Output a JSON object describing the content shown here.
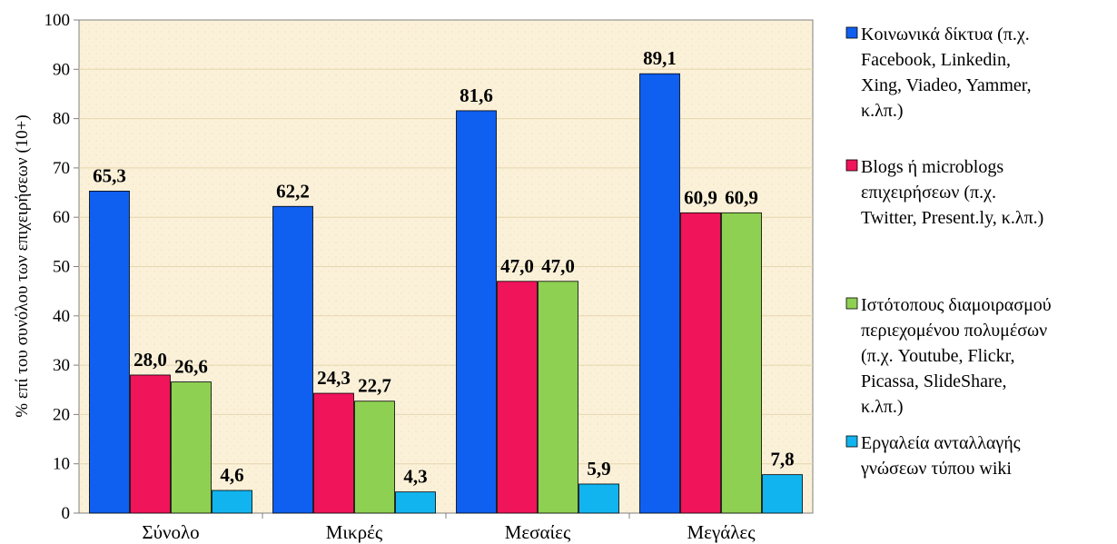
{
  "chart_data": {
    "type": "bar",
    "categories": [
      "Σύνολο",
      "Μικρές",
      "Μεσαίες",
      "Μεγάλες"
    ],
    "series": [
      {
        "name": "Κοινωνικά δίκτυα (π.χ. Facebook, Linkedin, Xing, Viadeo, Yammer, κ.λπ.)",
        "legend_lines": [
          "Κοινωνικά δίκτυα (π.χ.",
          "Facebook, Linkedin,",
          "Xing, Viadeo, Yammer,",
          "κ.λπ.)"
        ],
        "color": "#0f5ff0",
        "values": [
          65.3,
          62.2,
          81.6,
          89.1
        ],
        "labels": [
          "65,3",
          "62,2",
          "81,6",
          "89,1"
        ]
      },
      {
        "name": "Blogs ή microblogs επιχειρήσεων (π.χ. Twitter, Present.ly, κ.λπ.)",
        "legend_lines": [
          "Blogs ή microblogs",
          "επιχειρήσεων (π.χ.",
          "Twitter, Present.ly, κ.λπ.)"
        ],
        "color": "#f0145a",
        "values": [
          28.0,
          24.3,
          47.0,
          60.9
        ],
        "labels": [
          "28,0",
          "24,3",
          "47,0",
          "60,9"
        ]
      },
      {
        "name": "Ιστότοπους διαμοιρασμού περιεχομένου πολυμέσων (π.χ. Youtube, Flickr, Picassa, SlideShare, κ.λπ.)",
        "legend_lines": [
          "Ιστότοπους διαμοιρασμού",
          "περιεχομένου πολυμέσων",
          "(π.χ. Youtube, Flickr,",
          "Picassa, SlideShare,",
          "κ.λπ.)"
        ],
        "color": "#8ed052",
        "values": [
          26.6,
          22.7,
          47.0,
          60.9
        ],
        "labels": [
          "26,6",
          "22,7",
          "47,0",
          "60,9"
        ]
      },
      {
        "name": "Εργαλεία ανταλλαγής γνώσεων τύπου wiki",
        "legend_lines": [
          "Εργαλεία ανταλλαγής",
          "γνώσεων τύπου wiki"
        ],
        "color": "#11b4ee",
        "values": [
          4.6,
          4.3,
          5.9,
          7.8
        ],
        "labels": [
          "4,6",
          "4,3",
          "5,9",
          "7,8"
        ]
      }
    ],
    "ylabel": "% επί του συνόλου των επιχειρήσεων (10+)",
    "ylim": [
      0,
      100
    ],
    "yticks": [
      0,
      10,
      20,
      30,
      40,
      50,
      60,
      70,
      80,
      90,
      100
    ],
    "grid": true,
    "legend": "right",
    "plot_background": "#fbf1d9"
  }
}
